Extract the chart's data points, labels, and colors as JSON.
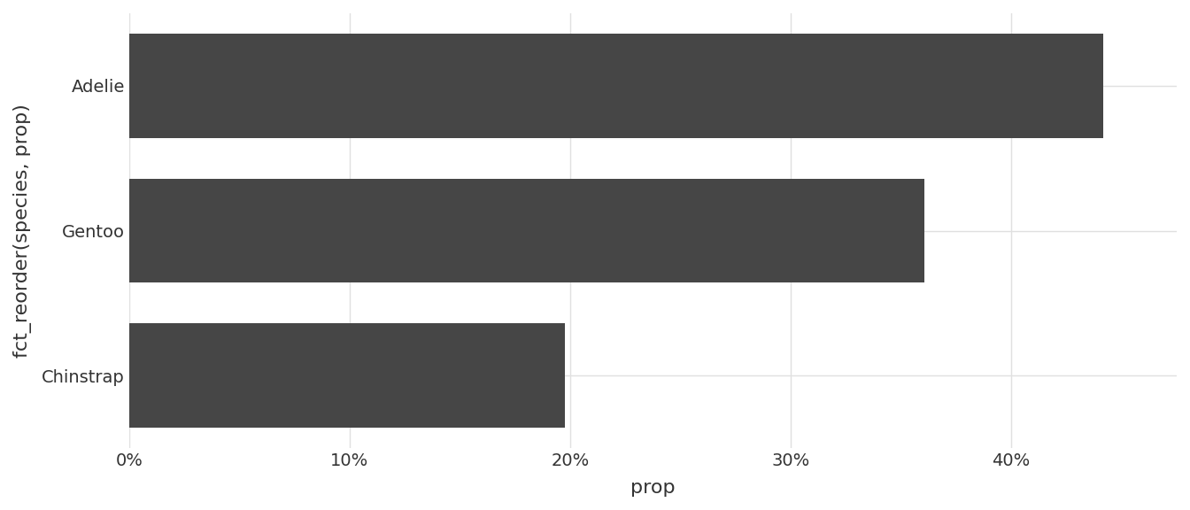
{
  "species": [
    "Chinstrap",
    "Gentoo",
    "Adelie"
  ],
  "proportions": [
    0.1976744186046512,
    0.3604651162790698,
    0.4418604651162791
  ],
  "bar_color": "#464646",
  "background_color": "#ffffff",
  "panel_background": "#ffffff",
  "grid_color": "#e0e0e0",
  "xlabel": "prop",
  "ylabel": "fct_reorder(species, prop)",
  "xticks": [
    0.0,
    0.1,
    0.2,
    0.3,
    0.4
  ],
  "xlim": [
    0,
    0.475
  ],
  "tick_label_fontsize": 14,
  "axis_label_fontsize": 16,
  "bar_height": 0.72
}
